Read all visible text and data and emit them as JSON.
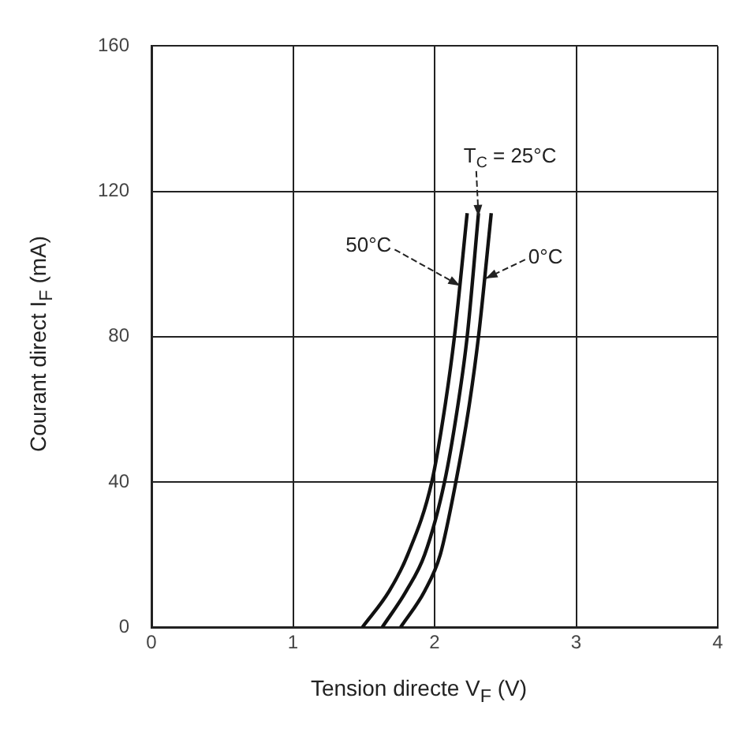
{
  "chart_data": {
    "type": "line",
    "xlabel": "Tension directe V$_{F}$ (V)",
    "ylabel": "Courant direct I$_{F}$ (mA)",
    "xlim": [
      0,
      4
    ],
    "xticks": [
      0,
      1,
      2,
      3,
      4
    ],
    "ylim": [
      0,
      160
    ],
    "yticks": [
      0,
      40,
      80,
      120,
      160
    ],
    "grid": true,
    "legend": false,
    "marker": "none",
    "line_style": "solid",
    "series": [
      {
        "color": "#111111",
        "x": [
          1.49,
          1.68,
          1.81,
          1.98,
          2.07,
          2.14,
          2.23
        ],
        "values": [
          0,
          10,
          20,
          40,
          60,
          80,
          114
        ]
      },
      {
        "color": "#111111",
        "x": [
          1.63,
          1.8,
          1.93,
          2.07,
          2.16,
          2.23,
          2.31
        ],
        "values": [
          0,
          10,
          20,
          40,
          60,
          80,
          114
        ]
      },
      {
        "color": "#111111",
        "x": [
          1.76,
          1.93,
          2.04,
          2.15,
          2.24,
          2.31,
          2.4
        ],
        "values": [
          0,
          10,
          20,
          40,
          60,
          80,
          114
        ]
      }
    ],
    "annotations": [
      {
        "text": "T$_{C}$ = 25°C",
        "x": 2.31,
        "y": 113
      },
      {
        "text": "50°C",
        "x": 2.18,
        "y": 94
      },
      {
        "text": "0°C",
        "x": 2.36,
        "y": 96
      }
    ]
  }
}
